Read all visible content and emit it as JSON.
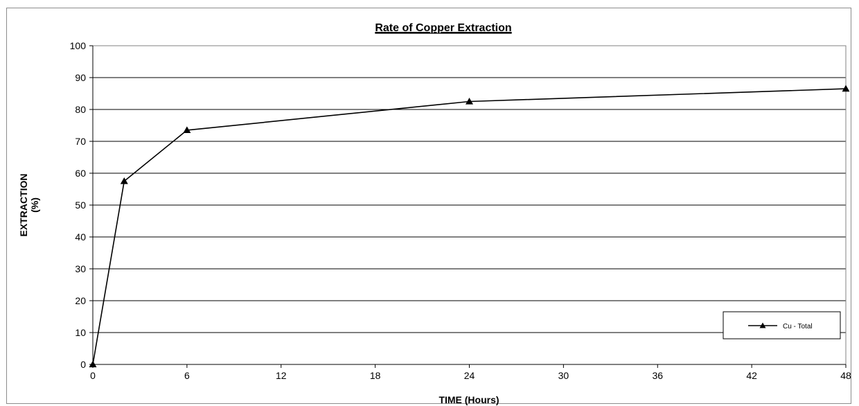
{
  "chart_data": {
    "type": "line",
    "title": "Rate of Copper Extraction",
    "xlabel": "TIME (Hours)",
    "ylabel_lines": [
      "EXTRACTION",
      "(%)"
    ],
    "xlim": [
      0,
      48
    ],
    "ylim": [
      0,
      100
    ],
    "x_ticks": [
      "0",
      "6",
      "12",
      "18",
      "24",
      "30",
      "36",
      "42",
      "48"
    ],
    "y_ticks": [
      "0",
      "10",
      "20",
      "30",
      "40",
      "50",
      "60",
      "70",
      "80",
      "90",
      "100"
    ],
    "grid": "horizontal",
    "legend_position": "bottom-right",
    "series": [
      {
        "name": "Cu - Total",
        "color": "#000000",
        "marker": "triangle",
        "x": [
          0,
          2,
          6,
          24,
          48
        ],
        "y": [
          0,
          57.5,
          73.5,
          82.5,
          86.5
        ]
      }
    ]
  }
}
